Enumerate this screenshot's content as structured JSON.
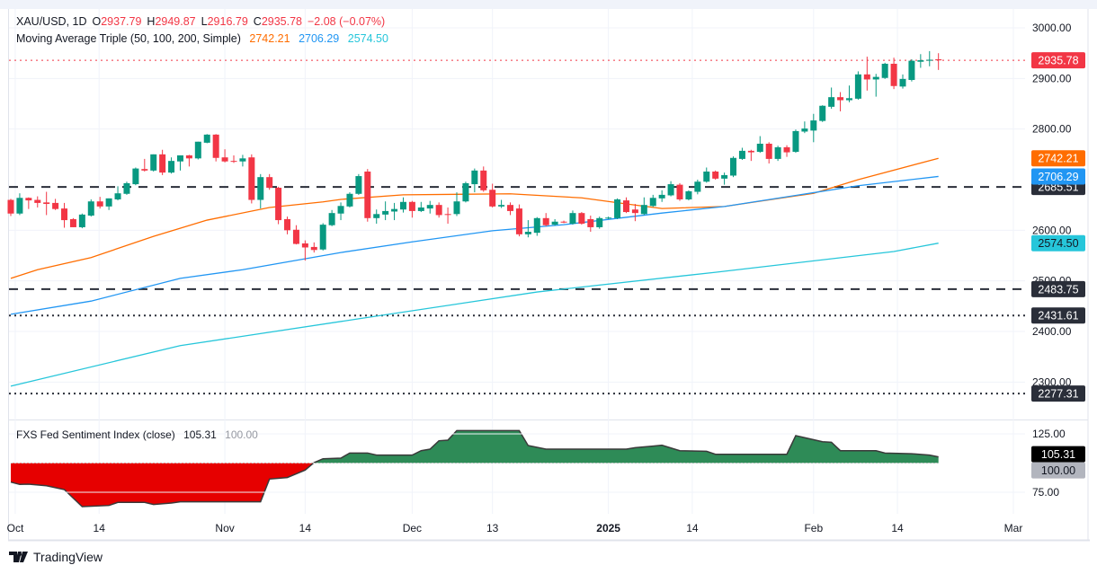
{
  "header": {
    "symbol": "XAU/USD, 1D",
    "open_label": "O",
    "open": "2937.79",
    "high_label": "H",
    "high": "2949.87",
    "low_label": "L",
    "low": "2916.79",
    "close_label": "C",
    "close": "2935.78",
    "change": "−2.08 (−0.07%)"
  },
  "ma_legend": {
    "title": "Moving Average Triple (50, 100, 200, Simple)",
    "ma50": "2742.21",
    "ma100": "2706.29",
    "ma200": "2574.50"
  },
  "sentiment_legend": {
    "title": "FXS Fed Sentiment Index (close)",
    "value": "105.31",
    "baseline": "100.00"
  },
  "brand": {
    "name": "TradingView"
  },
  "colors": {
    "up": "#089981",
    "down": "#f23645",
    "ma50": "#ff6d00",
    "ma100": "#2196f3",
    "ma200": "#26c6da",
    "pos_fill": "#2e8b57",
    "neg_fill": "#e60000",
    "level_label": "#2a2e39"
  },
  "chart_data": [
    {
      "type": "candlestick",
      "title": "XAU/USD, 1D",
      "ylim": [
        2229.6,
        3055
      ],
      "price_ticks": [
        "3000.00",
        "2900.00",
        "2800.00",
        "2600.00",
        "2500.00",
        "2400.00",
        "2300.00"
      ],
      "time_ticks": [
        {
          "label": "Oct",
          "index": 0.5
        },
        {
          "label": "14",
          "index": 9.9
        },
        {
          "label": "Nov",
          "index": 24
        },
        {
          "label": "14",
          "index": 33
        },
        {
          "label": "Dec",
          "index": 45
        },
        {
          "label": "13",
          "index": 54
        },
        {
          "label": "2025",
          "index": 67
        },
        {
          "label": "14",
          "index": 76.4
        },
        {
          "label": "Feb",
          "index": 90
        },
        {
          "label": "14",
          "index": 99.4
        },
        {
          "label": "Mar",
          "index": 112.4
        }
      ],
      "candles_ohlc": [
        [
          2660,
          2662,
          2628,
          2633
        ],
        [
          2633,
          2673,
          2630,
          2664
        ],
        [
          2664,
          2665,
          2642,
          2659
        ],
        [
          2660,
          2667,
          2645,
          2654
        ],
        [
          2655,
          2676,
          2630,
          2652
        ],
        [
          2654,
          2662,
          2640,
          2642
        ],
        [
          2643,
          2654,
          2605,
          2620
        ],
        [
          2622,
          2624,
          2606,
          2606
        ],
        [
          2606,
          2633,
          2604,
          2631
        ],
        [
          2629,
          2661,
          2627,
          2657
        ],
        [
          2657,
          2666,
          2643,
          2647
        ],
        [
          2647,
          2663,
          2640,
          2663
        ],
        [
          2661,
          2687,
          2659,
          2673
        ],
        [
          2672,
          2696,
          2670,
          2693
        ],
        [
          2691,
          2724,
          2689,
          2722
        ],
        [
          2721,
          2741,
          2716,
          2718
        ],
        [
          2718,
          2750,
          2716,
          2750
        ],
        [
          2750,
          2759,
          2709,
          2714
        ],
        [
          2714,
          2744,
          2712,
          2737
        ],
        [
          2736,
          2748,
          2718,
          2748
        ],
        [
          2748,
          2749,
          2726,
          2742
        ],
        [
          2742,
          2775,
          2740,
          2775
        ],
        [
          2773,
          2790,
          2772,
          2789
        ],
        [
          2789,
          2790,
          2736,
          2743
        ],
        [
          2744,
          2760,
          2734,
          2736
        ],
        [
          2737,
          2748,
          2733,
          2736
        ],
        [
          2736,
          2749,
          2726,
          2742
        ],
        [
          2744,
          2750,
          2653,
          2660
        ],
        [
          2660,
          2711,
          2643,
          2705
        ],
        [
          2705,
          2711,
          2680,
          2684
        ],
        [
          2684,
          2686,
          2612,
          2620
        ],
        [
          2622,
          2627,
          2592,
          2600
        ],
        [
          2601,
          2610,
          2572,
          2573
        ],
        [
          2574,
          2580,
          2540,
          2566
        ],
        [
          2567,
          2576,
          2556,
          2561
        ],
        [
          2562,
          2614,
          2560,
          2611
        ],
        [
          2610,
          2640,
          2608,
          2634
        ],
        [
          2633,
          2655,
          2620,
          2648
        ],
        [
          2647,
          2675,
          2645,
          2672
        ],
        [
          2672,
          2711,
          2670,
          2707
        ],
        [
          2716,
          2721,
          2617,
          2624
        ],
        [
          2624,
          2641,
          2613,
          2632
        ],
        [
          2631,
          2657,
          2620,
          2638
        ],
        [
          2637,
          2654,
          2620,
          2642
        ],
        [
          2641,
          2665,
          2635,
          2656
        ],
        [
          2656,
          2658,
          2625,
          2638
        ],
        [
          2638,
          2656,
          2636,
          2645
        ],
        [
          2643,
          2658,
          2633,
          2650
        ],
        [
          2650,
          2655,
          2625,
          2630
        ],
        [
          2632,
          2645,
          2613,
          2631
        ],
        [
          2632,
          2675,
          2628,
          2657
        ],
        [
          2657,
          2696,
          2655,
          2693
        ],
        [
          2691,
          2722,
          2675,
          2718
        ],
        [
          2718,
          2726,
          2676,
          2679
        ],
        [
          2680,
          2692,
          2645,
          2647
        ],
        [
          2647,
          2660,
          2644,
          2650
        ],
        [
          2650,
          2655,
          2630,
          2638
        ],
        [
          2643,
          2651,
          2588,
          2592
        ],
        [
          2592,
          2620,
          2586,
          2597
        ],
        [
          2595,
          2626,
          2589,
          2624
        ],
        [
          2624,
          2634,
          2608,
          2610
        ],
        [
          2611,
          2622,
          2609,
          2617
        ],
        [
          2617,
          2619,
          2614,
          2616
        ],
        [
          2613,
          2639,
          2611,
          2634
        ],
        [
          2634,
          2636,
          2611,
          2613
        ],
        [
          2622,
          2629,
          2597,
          2606
        ],
        [
          2606,
          2627,
          2603,
          2624
        ],
        [
          2624,
          2627,
          2622,
          2625
        ],
        [
          2624,
          2663,
          2622,
          2661
        ],
        [
          2659,
          2665,
          2634,
          2636
        ],
        [
          2641,
          2652,
          2618,
          2634
        ],
        [
          2632,
          2665,
          2630,
          2650
        ],
        [
          2648,
          2670,
          2646,
          2664
        ],
        [
          2663,
          2679,
          2656,
          2670
        ],
        [
          2669,
          2697,
          2667,
          2691
        ],
        [
          2690,
          2693,
          2658,
          2661
        ],
        [
          2661,
          2679,
          2659,
          2677
        ],
        [
          2676,
          2700,
          2671,
          2696
        ],
        [
          2696,
          2724,
          2694,
          2716
        ],
        [
          2716,
          2718,
          2700,
          2702
        ],
        [
          2702,
          2714,
          2690,
          2709
        ],
        [
          2708,
          2746,
          2705,
          2743
        ],
        [
          2741,
          2763,
          2739,
          2757
        ],
        [
          2757,
          2759,
          2737,
          2754
        ],
        [
          2755,
          2786,
          2753,
          2771
        ],
        [
          2771,
          2774,
          2732,
          2741
        ],
        [
          2741,
          2767,
          2737,
          2764
        ],
        [
          2764,
          2768,
          2745,
          2754
        ],
        [
          2755,
          2799,
          2753,
          2796
        ],
        [
          2795,
          2815,
          2792,
          2801
        ],
        [
          2797,
          2830,
          2774,
          2817
        ],
        [
          2816,
          2847,
          2814,
          2846
        ],
        [
          2844,
          2882,
          2840,
          2863
        ],
        [
          2863,
          2873,
          2835,
          2857
        ],
        [
          2857,
          2886,
          2853,
          2861
        ],
        [
          2860,
          2914,
          2858,
          2908
        ],
        [
          2908,
          2943,
          2876,
          2898
        ],
        [
          2898,
          2909,
          2864,
          2903
        ],
        [
          2901,
          2931,
          2899,
          2929
        ],
        [
          2929,
          2941,
          2879,
          2885
        ],
        [
          2884,
          2908,
          2880,
          2899
        ],
        [
          2897,
          2938,
          2894,
          2935
        ],
        [
          2933,
          2948,
          2921,
          2936
        ],
        [
          2935,
          2954,
          2924,
          2937
        ],
        [
          2937.79,
          2949.87,
          2916.79,
          2935.78
        ]
      ],
      "moving_averages": [
        {
          "name": "MA 50",
          "color": "#ff6d00",
          "points": [
            [
              0,
              2505
            ],
            [
              3,
              2522
            ],
            [
              9,
              2546
            ],
            [
              16,
              2588
            ],
            [
              22,
              2620
            ],
            [
              29,
              2645
            ],
            [
              35,
              2656
            ],
            [
              37,
              2661
            ],
            [
              44,
              2670
            ],
            [
              56,
              2672
            ],
            [
              64,
              2664
            ],
            [
              69,
              2652
            ],
            [
              73,
              2643
            ],
            [
              80,
              2647
            ],
            [
              90,
              2673
            ],
            [
              95,
              2700
            ],
            [
              104,
              2742.21
            ]
          ]
        },
        {
          "name": "MA 100",
          "color": "#2196f3",
          "points": [
            [
              0,
              2434
            ],
            [
              9,
              2460
            ],
            [
              19,
              2505
            ],
            [
              26,
              2522
            ],
            [
              37,
              2556
            ],
            [
              45,
              2577
            ],
            [
              54,
              2599
            ],
            [
              62,
              2611
            ],
            [
              73,
              2634
            ],
            [
              80,
              2647
            ],
            [
              95,
              2688
            ],
            [
              104,
              2706.29
            ]
          ]
        },
        {
          "name": "MA 200",
          "color": "#26c6da",
          "points": [
            [
              0,
              2292
            ],
            [
              19,
              2372
            ],
            [
              39,
              2425
            ],
            [
              59,
              2478
            ],
            [
              79,
              2517
            ],
            [
              99,
              2558
            ],
            [
              104,
              2574.5
            ]
          ]
        }
      ],
      "levels": [
        {
          "value": 2935.78,
          "label": "2935.78",
          "style": "dotted",
          "color": "#f23645"
        },
        {
          "value": 2685.51,
          "label": "2685.51",
          "style": "dashed",
          "color": "#2a2e39"
        },
        {
          "value": 2483.75,
          "label": "2483.75",
          "style": "dashed",
          "color": "#2a2e39"
        },
        {
          "value": 2431.61,
          "label": "2431.61",
          "style": "dotted",
          "color": "#2a2e39"
        },
        {
          "value": 2277.31,
          "label": "2277.31",
          "style": "dotted",
          "color": "#2a2e39"
        }
      ],
      "ma_labels": [
        {
          "value": 2742.21,
          "label": "2742.21",
          "color": "#ff6d00"
        },
        {
          "value": 2706.29,
          "label": "2706.29",
          "color": "#2196f3"
        },
        {
          "value": 2574.5,
          "label": "2574.50",
          "color": "#26c6da"
        }
      ]
    },
    {
      "type": "area",
      "title": "FXS Fed Sentiment Index (close)",
      "baseline": 100,
      "ylim": [
        57,
        135
      ],
      "ticks": [
        "125.00",
        "75.00"
      ],
      "last_label": "105.31",
      "baseline_label": "100.00",
      "points": [
        [
          0,
          83.7
        ],
        [
          1,
          81.7
        ],
        [
          2,
          81.9
        ],
        [
          4,
          80.6
        ],
        [
          6,
          77.3
        ],
        [
          8,
          62.7
        ],
        [
          11,
          63.7
        ],
        [
          12,
          66.3
        ],
        [
          15,
          66.3
        ],
        [
          16,
          64.5
        ],
        [
          18,
          65.8
        ],
        [
          19,
          66.8
        ],
        [
          28,
          66.8
        ],
        [
          29,
          86.3
        ],
        [
          31,
          87.6
        ],
        [
          33,
          94
        ],
        [
          34,
          100.4
        ],
        [
          35,
          103.7
        ],
        [
          37,
          104.2
        ],
        [
          38,
          108.6
        ],
        [
          40,
          108.6
        ],
        [
          41,
          106.8
        ],
        [
          45,
          106.8
        ],
        [
          46,
          110.6
        ],
        [
          47,
          111.9
        ],
        [
          48,
          119.1
        ],
        [
          49,
          119.6
        ],
        [
          50,
          127.8
        ],
        [
          57,
          127.8
        ],
        [
          58,
          115
        ],
        [
          60,
          111.9
        ],
        [
          69,
          111.9
        ],
        [
          70,
          113.2
        ],
        [
          72,
          114.5
        ],
        [
          73,
          115.3
        ],
        [
          75,
          110.6
        ],
        [
          78,
          110.1
        ],
        [
          79,
          107.5
        ],
        [
          87,
          107.5
        ],
        [
          88,
          123.5
        ],
        [
          89,
          121.7
        ],
        [
          91,
          118.3
        ],
        [
          92,
          117.8
        ],
        [
          93,
          110.6
        ],
        [
          97,
          110.6
        ],
        [
          98,
          108.6
        ],
        [
          101,
          108
        ],
        [
          103,
          106.8
        ],
        [
          104,
          105.31
        ]
      ]
    }
  ]
}
